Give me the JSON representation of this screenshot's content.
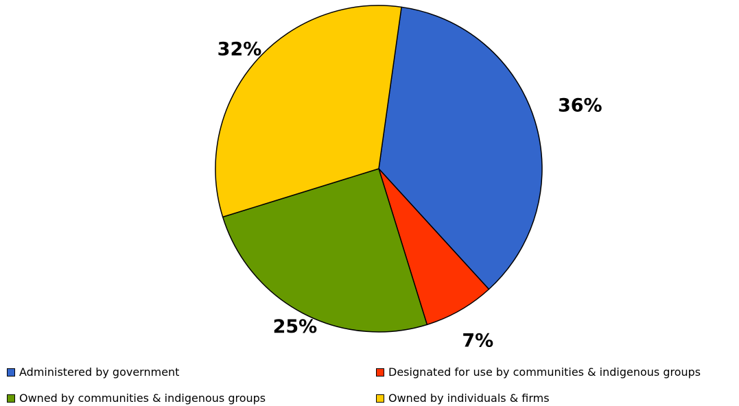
{
  "chart_data": {
    "type": "pie",
    "values": [
      36,
      7,
      25,
      32
    ],
    "labels": [
      "36%",
      "7%",
      "25%",
      "32%"
    ],
    "categories": [
      "Administered by government",
      "Designated for use by communities & indigenous groups",
      "Owned by communities & indigenous groups",
      "Owned by individuals & firms"
    ],
    "colors": [
      "#3366CC",
      "#FF3300",
      "#669900",
      "#FFCC00"
    ],
    "legend_position": "bottom"
  }
}
